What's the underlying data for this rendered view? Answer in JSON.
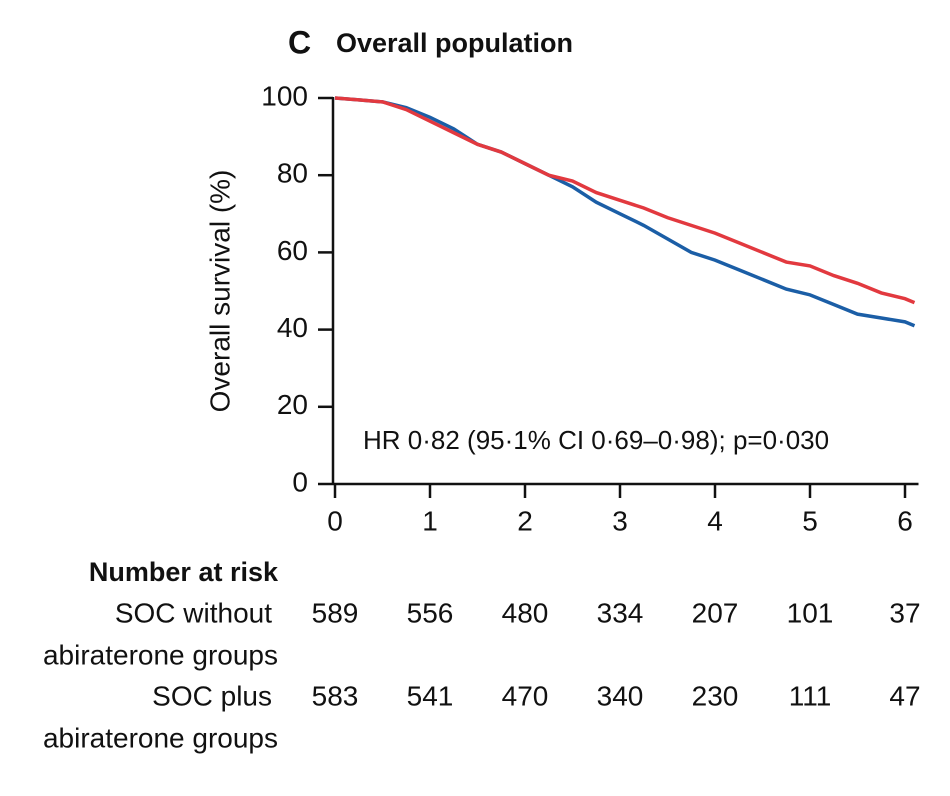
{
  "chart_data": {
    "type": "line",
    "panel_label": "C",
    "title": "Overall population",
    "y_label": "Overall survival (%)",
    "annotation": "HR 0·82 (95·1% CI 0·69–0·98); p=0·030",
    "xlim": [
      0,
      6.1
    ],
    "xticks": [
      0,
      1,
      2,
      3,
      4,
      5,
      6
    ],
    "ylim": [
      0,
      100
    ],
    "yticks": [
      0,
      20,
      40,
      60,
      80,
      100
    ],
    "series": [
      {
        "color": "#1b5ea6",
        "x": [
          0,
          0.25,
          0.5,
          0.75,
          1,
          1.25,
          1.5,
          1.75,
          2,
          2.25,
          2.5,
          2.75,
          3,
          3.25,
          3.5,
          3.75,
          4,
          4.25,
          4.5,
          4.75,
          5,
          5.25,
          5.5,
          5.75,
          6,
          6.1
        ],
        "values": [
          100,
          99.5,
          99,
          97.5,
          95,
          92,
          88,
          86,
          83,
          80,
          77,
          73,
          70,
          67,
          63.5,
          60,
          58,
          55.5,
          53,
          50.5,
          49,
          46.5,
          44,
          43,
          42,
          41
        ]
      },
      {
        "color": "#e2393f",
        "x": [
          0,
          0.25,
          0.5,
          0.75,
          1,
          1.25,
          1.5,
          1.75,
          2,
          2.25,
          2.5,
          2.75,
          3,
          3.25,
          3.5,
          3.75,
          4,
          4.25,
          4.5,
          4.75,
          5,
          5.25,
          5.5,
          5.75,
          6,
          6.1
        ],
        "values": [
          100,
          99.5,
          99,
          97,
          94,
          91,
          88,
          86,
          83,
          80,
          78.5,
          75.5,
          73.5,
          71.5,
          69,
          67,
          65,
          62.5,
          60,
          57.5,
          56.5,
          54,
          52,
          49.5,
          48,
          47
        ]
      }
    ],
    "risk_table": {
      "title": "Number at risk",
      "rows": [
        {
          "label_lines": [
            "SOC without",
            "abiraterone groups"
          ],
          "values": [
            589,
            556,
            480,
            334,
            207,
            101,
            37
          ]
        },
        {
          "label_lines": [
            "SOC plus",
            "abiraterone groups"
          ],
          "values": [
            583,
            541,
            470,
            340,
            230,
            111,
            47
          ]
        }
      ]
    }
  }
}
